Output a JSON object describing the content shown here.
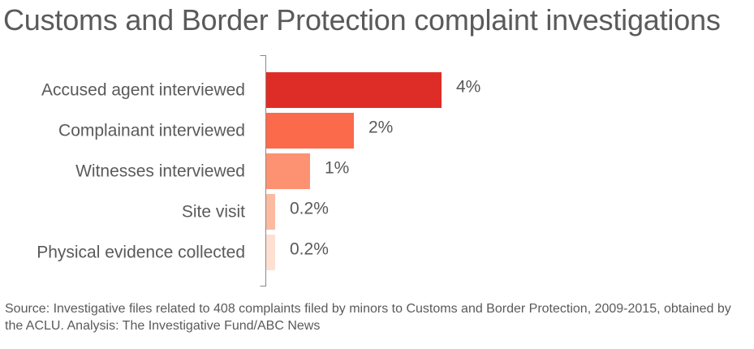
{
  "title": "Customs and Border Protection complaint investigations",
  "source": "Source: Investigative files related to 408 complaints filed by minors to Customs and Border Protection, 2009-2015, obtained by the ACLU. Analysis: The Investigative Fund/ABC News",
  "chart_data": {
    "type": "bar",
    "orientation": "horizontal",
    "title": "Customs and Border Protection complaint investigations",
    "categories": [
      "Accused agent interviewed",
      "Complainant interviewed",
      "Witnesses interviewed",
      "Site visit",
      "Physical evidence collected"
    ],
    "values": [
      4,
      2,
      1,
      0.2,
      0.2
    ],
    "value_labels": [
      "4%",
      "2%",
      "1%",
      "0.2%",
      "0.2%"
    ],
    "colors": [
      "#de2d26",
      "#fb6a4a",
      "#fc9272",
      "#fcbba1",
      "#fee0d2"
    ],
    "xlabel": "",
    "ylabel": "",
    "xlim": [
      0,
      4.1
    ],
    "grid": false,
    "legend": "none"
  }
}
